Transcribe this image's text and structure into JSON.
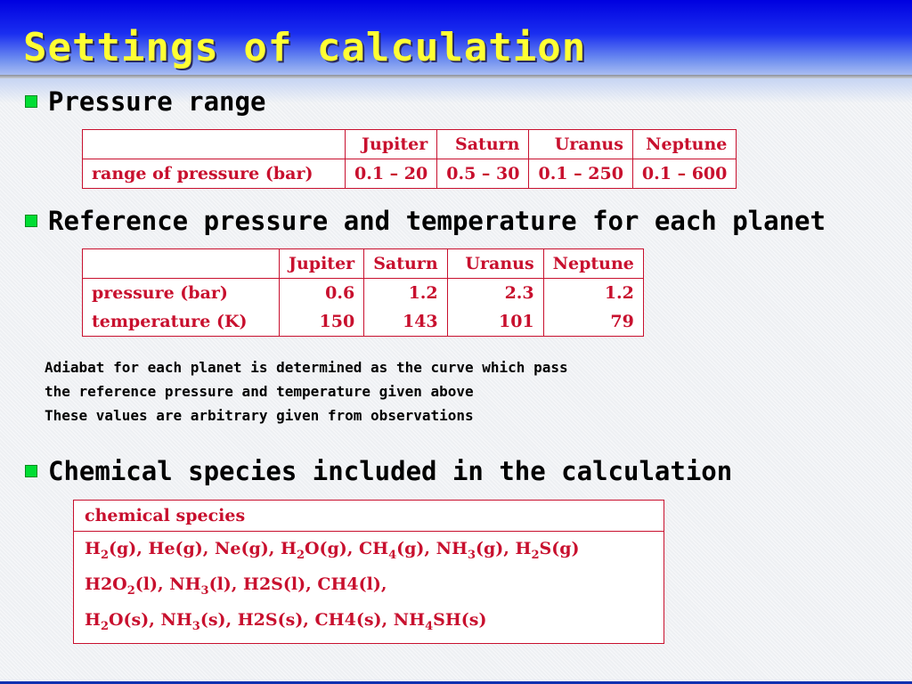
{
  "title": "Settings of calculation",
  "sections": [
    {
      "heading": "Pressure range"
    },
    {
      "heading": "Reference pressure and temperature for each planet"
    },
    {
      "heading": "Chemical species included in the calculation"
    }
  ],
  "pressure_range": {
    "headers": [
      "",
      "Jupiter",
      "Saturn",
      "Uranus",
      "Neptune"
    ],
    "rows": [
      [
        "range of pressure (bar)",
        "0.1 – 20",
        "0.5 – 30",
        "0.1 – 250",
        "0.1 – 600"
      ]
    ]
  },
  "reference": {
    "headers": [
      "",
      "Jupiter",
      "Saturn",
      "Uranus",
      "Neptune"
    ],
    "rows": [
      [
        "pressure (bar)",
        "0.6",
        "1.2",
        "2.3",
        "1.2"
      ],
      [
        "temperature (K)",
        "150",
        "143",
        "101",
        "79"
      ]
    ]
  },
  "notes": [
    "Adiabat for each planet is determined as the curve which pass",
    "the reference pressure and temperature given above",
    "These values are arbitrary given from observations"
  ],
  "species": {
    "header": "chemical species",
    "lines": [
      [
        {
          "t": "H"
        },
        {
          "s": "2"
        },
        {
          "t": "(g), He(g), Ne(g), H"
        },
        {
          "s": "2"
        },
        {
          "t": "O(g), CH"
        },
        {
          "s": "4"
        },
        {
          "t": "(g), NH"
        },
        {
          "s": "3"
        },
        {
          "t": "(g), H"
        },
        {
          "s": "2"
        },
        {
          "t": "S(g)"
        }
      ],
      [
        {
          "t": "H2O"
        },
        {
          "s": "2"
        },
        {
          "t": "(l), NH"
        },
        {
          "s": "3"
        },
        {
          "t": "(l), H2S(l), CH4(l),"
        }
      ],
      [
        {
          "t": "H"
        },
        {
          "s": "2"
        },
        {
          "t": "O(s), NH"
        },
        {
          "s": "3"
        },
        {
          "t": "(s), H2S(s), CH4(s), NH"
        },
        {
          "s": "4"
        },
        {
          "t": "SH(s)"
        }
      ]
    ]
  }
}
